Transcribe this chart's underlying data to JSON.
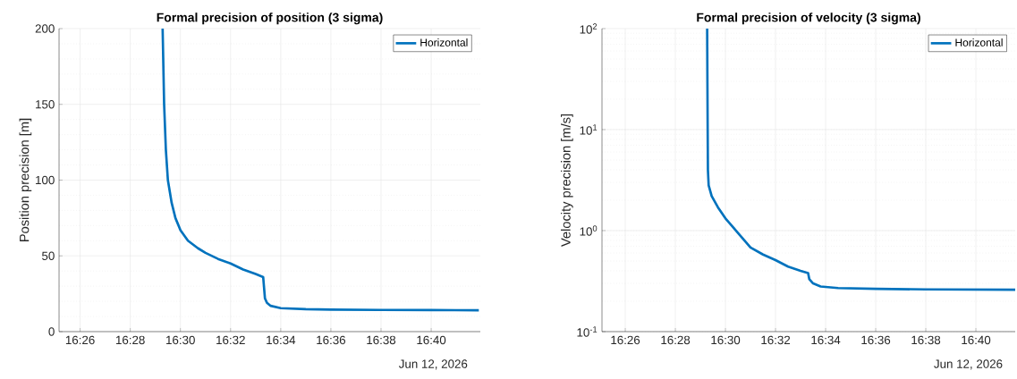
{
  "chart_data": [
    {
      "type": "line",
      "title": "Formal precision of position (3 sigma)",
      "ylabel": "Position precision [m]",
      "xlim": [
        16.41933,
        16.69933
      ],
      "ylim": [
        0,
        200
      ],
      "xticks": [
        {
          "value": 16.43333,
          "label": "16:26"
        },
        {
          "value": 16.46667,
          "label": "16:28"
        },
        {
          "value": 16.5,
          "label": "16:30"
        },
        {
          "value": 16.53333,
          "label": "16:32"
        },
        {
          "value": 16.56667,
          "label": "16:34"
        },
        {
          "value": 16.6,
          "label": "16:36"
        },
        {
          "value": 16.63333,
          "label": "16:38"
        },
        {
          "value": 16.66667,
          "label": "16:40"
        }
      ],
      "yticks": [
        0,
        50,
        100,
        150,
        200
      ],
      "annotations": [
        "Jun 12, 2026"
      ],
      "grid": true,
      "legend": "top right",
      "marker": "none",
      "line_style": "solid",
      "series": [
        {
          "name": "Horizontal",
          "color": "#0072bd",
          "x": [
            16.48817,
            16.48917,
            16.49033,
            16.49167,
            16.49417,
            16.49667,
            16.5,
            16.505,
            16.51167,
            16.51667,
            16.525,
            16.53333,
            16.54167,
            16.55,
            16.555,
            16.5555,
            16.55617,
            16.5575,
            16.56,
            16.56667,
            16.58333,
            16.6,
            16.63333,
            16.66667,
            16.69833
          ],
          "values": [
            200,
            150,
            120,
            100,
            85,
            75,
            67,
            60,
            55,
            52,
            48,
            45,
            41,
            38,
            36,
            30,
            22,
            19,
            17,
            15.5,
            14.8,
            14.5,
            14.3,
            14.2,
            14.1
          ]
        }
      ]
    },
    {
      "type": "line",
      "title": "Formal precision of velocity (3 sigma)",
      "ylabel": "Velocity precision [m/s]",
      "xlim": [
        16.41783,
        16.69283
      ],
      "ylim": [
        0.1,
        100
      ],
      "log": "y",
      "xticks": [
        {
          "value": 16.43333,
          "label": "16:26"
        },
        {
          "value": 16.46667,
          "label": "16:28"
        },
        {
          "value": 16.5,
          "label": "16:30"
        },
        {
          "value": 16.53333,
          "label": "16:32"
        },
        {
          "value": 16.56667,
          "label": "16:34"
        },
        {
          "value": 16.6,
          "label": "16:36"
        },
        {
          "value": 16.63333,
          "label": "16:38"
        },
        {
          "value": 16.66667,
          "label": "16:40"
        }
      ],
      "yticks": [
        {
          "value": 0.1,
          "label": "10$^{-1}$"
        },
        {
          "value": 1,
          "label": "10$^{0}$"
        },
        {
          "value": 10,
          "label": "10$^{1}$"
        },
        {
          "value": 100,
          "label": "10$^{2}$"
        }
      ],
      "annotations": [
        "Jun 12, 2026"
      ],
      "grid": true,
      "legend": "top right",
      "marker": "none",
      "line_style": "solid",
      "series": [
        {
          "name": "Horizontal",
          "color": "#0072bd",
          "x": [
            16.48783,
            16.488,
            16.48817,
            16.48833,
            16.48883,
            16.49083,
            16.495,
            16.5,
            16.50833,
            16.51667,
            16.525,
            16.53333,
            16.54167,
            16.55,
            16.555,
            16.55583,
            16.55833,
            16.56333,
            16.575,
            16.6,
            16.63333,
            16.69283
          ],
          "values": [
            100,
            30,
            10,
            4,
            2.8,
            2.2,
            1.7,
            1.32,
            0.95,
            0.68,
            0.58,
            0.51,
            0.44,
            0.4,
            0.38,
            0.33,
            0.3,
            0.28,
            0.27,
            0.265,
            0.262,
            0.26
          ]
        }
      ]
    }
  ]
}
